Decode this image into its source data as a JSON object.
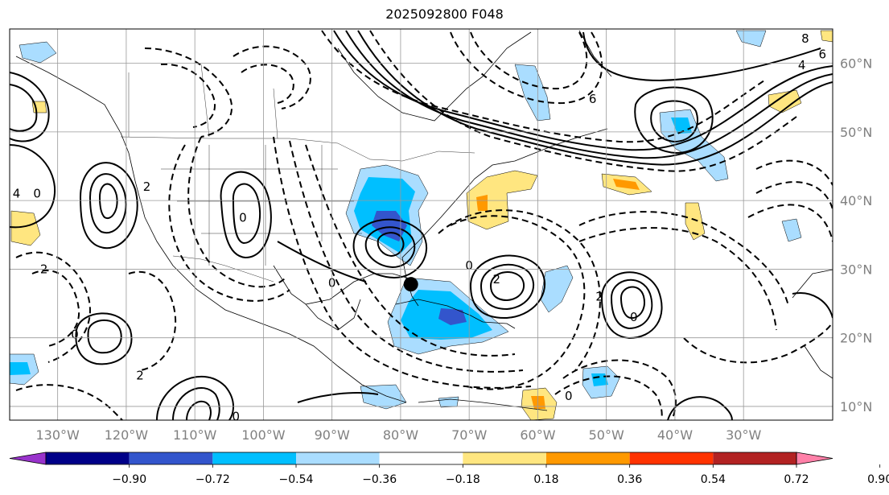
{
  "title": "2025092800 F048",
  "map": {
    "lon_range": [
      -137,
      -17
    ],
    "lat_range": [
      8,
      65
    ],
    "lon_ticks": [
      {
        "lon": -130,
        "label": "130°W"
      },
      {
        "lon": -120,
        "label": "120°W"
      },
      {
        "lon": -110,
        "label": "110°W"
      },
      {
        "lon": -100,
        "label": "100°W"
      },
      {
        "lon": -90,
        "label": "90°W"
      },
      {
        "lon": -80,
        "label": "80°W"
      },
      {
        "lon": -70,
        "label": "70°W"
      },
      {
        "lon": -60,
        "label": "60°W"
      },
      {
        "lon": -50,
        "label": "50°W"
      },
      {
        "lon": -40,
        "label": "40°W"
      },
      {
        "lon": -30,
        "label": "30°W"
      }
    ],
    "lat_ticks": [
      {
        "lat": 60,
        "label": "60°N"
      },
      {
        "lat": 50,
        "label": "50°N"
      },
      {
        "lat": 40,
        "label": "40°N"
      },
      {
        "lat": 30,
        "label": "30°N"
      },
      {
        "lat": 20,
        "label": "20°N"
      },
      {
        "lat": 10,
        "label": "10°N"
      }
    ],
    "marker": {
      "lon": -78.5,
      "lat": 27.8,
      "color": "#000000"
    },
    "contour_labels": [
      {
        "text": "8",
        "lon": -21,
        "lat": 63.6
      },
      {
        "text": "6",
        "lon": -18.5,
        "lat": 61.3
      },
      {
        "text": "4",
        "lon": -21.5,
        "lat": 59.7
      },
      {
        "text": "6",
        "lon": -52,
        "lat": 54.8
      },
      {
        "text": "2",
        "lon": -117,
        "lat": 42
      },
      {
        "text": "0",
        "lon": -103,
        "lat": 37.5
      },
      {
        "text": "2",
        "lon": -51,
        "lat": 26
      },
      {
        "text": "0",
        "lon": -133,
        "lat": 41
      },
      {
        "text": "0",
        "lon": -127.5,
        "lat": 20.5
      },
      {
        "text": "0",
        "lon": -70,
        "lat": 30.5
      },
      {
        "text": "2",
        "lon": -66,
        "lat": 28.5
      },
      {
        "text": "0",
        "lon": -46,
        "lat": 23
      },
      {
        "text": "2",
        "lon": -118,
        "lat": 14.5
      },
      {
        "text": "0",
        "lon": -55.5,
        "lat": 11.5
      },
      {
        "text": "0",
        "lon": -90,
        "lat": 28
      },
      {
        "text": "0",
        "lon": -104,
        "lat": 8.5
      },
      {
        "text": "4",
        "lon": -136,
        "lat": 41
      },
      {
        "text": "2",
        "lon": -132,
        "lat": 30
      }
    ]
  },
  "colorbar": {
    "colors": [
      "#9933cc",
      "#000088",
      "#3355cc",
      "#00bfff",
      "#aaddff",
      "#ffffff",
      "#ffe680",
      "#ff9900",
      "#ff3300",
      "#b22222",
      "#ff80a8"
    ],
    "labels": [
      "−0.90",
      "−0.72",
      "−0.54",
      "−0.36",
      "−0.18",
      "0.18",
      "0.36",
      "0.54",
      "0.72",
      "0.90"
    ]
  }
}
